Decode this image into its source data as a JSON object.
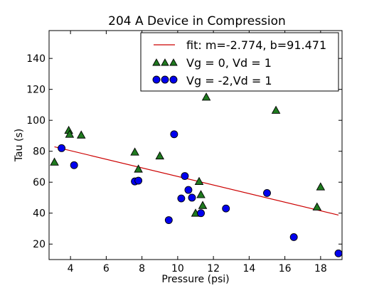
{
  "chart_data": {
    "type": "scatter",
    "title": "204 A Device in Compression",
    "xlabel": "Pressure (psi)",
    "ylabel": "Tau (s)",
    "xlim": [
      2.8,
      19.2
    ],
    "ylim": [
      10,
      158
    ],
    "xticks": [
      "4",
      "6",
      "8",
      "10",
      "12",
      "14",
      "16",
      "18"
    ],
    "yticks": [
      "20",
      "40",
      "60",
      "80",
      "100",
      "120",
      "140"
    ],
    "grid": false,
    "legend_position": "top-right",
    "fit": {
      "label": "fit: m=-2.774, b=91.471",
      "m": -2.774,
      "b": 91.471,
      "x_range": [
        3.1,
        19.0
      ],
      "color": "#cc0000"
    },
    "series": [
      {
        "name": "Vg = 0, Vd = 1",
        "marker": "triangle",
        "color": "#1f7a1f",
        "points": [
          [
            3.1,
            73
          ],
          [
            3.9,
            93.5
          ],
          [
            3.95,
            91
          ],
          [
            4.6,
            90.5
          ],
          [
            7.6,
            79.5
          ],
          [
            7.8,
            68.5
          ],
          [
            9.0,
            77
          ],
          [
            11.2,
            60.5
          ],
          [
            11.3,
            52
          ],
          [
            11.4,
            45
          ],
          [
            11.0,
            40
          ],
          [
            11.6,
            115
          ],
          [
            15.5,
            106.5
          ],
          [
            17.8,
            44
          ],
          [
            18.0,
            57
          ]
        ]
      },
      {
        "name": "Vg = -2,Vd = 1",
        "marker": "circle",
        "color": "#0000ee",
        "points": [
          [
            3.5,
            82
          ],
          [
            4.2,
            71
          ],
          [
            7.6,
            60.5
          ],
          [
            7.8,
            61
          ],
          [
            9.5,
            35.5
          ],
          [
            9.8,
            91
          ],
          [
            10.2,
            49.5
          ],
          [
            10.4,
            64
          ],
          [
            10.6,
            55
          ],
          [
            10.8,
            50
          ],
          [
            11.3,
            40
          ],
          [
            12.7,
            43
          ],
          [
            15.0,
            53
          ],
          [
            16.5,
            24.5
          ],
          [
            19.0,
            14
          ]
        ]
      }
    ]
  }
}
